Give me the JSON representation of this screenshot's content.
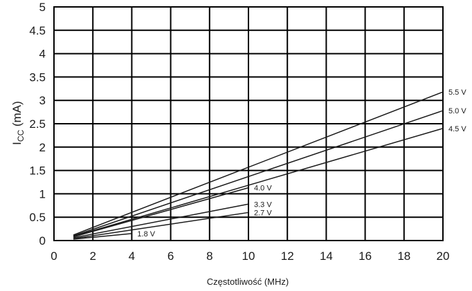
{
  "chart_data": {
    "type": "line",
    "title": "",
    "xlabel": "Częstotliwość (MHz)",
    "ylabel": {
      "main": "I",
      "subscript": "CC",
      "unit": " (mA)"
    },
    "xlim": [
      0,
      20
    ],
    "ylim": [
      0,
      5
    ],
    "xticks": [
      0,
      2,
      4,
      6,
      8,
      10,
      12,
      14,
      16,
      18,
      20
    ],
    "yticks": [
      0,
      0.5,
      1,
      1.5,
      2,
      2.5,
      3,
      3.5,
      4,
      4.5,
      5
    ],
    "ytick_labels": [
      "0",
      "0.5",
      "1",
      "1.5",
      "2",
      "2.5",
      "3",
      "3.5",
      "4",
      "4.5",
      "5"
    ],
    "grid": true,
    "series": [
      {
        "name": "5.5 V",
        "x": [
          1,
          20
        ],
        "y": [
          0.12,
          3.18
        ]
      },
      {
        "name": "5.0 V",
        "x": [
          1,
          20
        ],
        "y": [
          0.1,
          2.78
        ]
      },
      {
        "name": "4.5 V",
        "x": [
          1,
          20
        ],
        "y": [
          0.09,
          2.4
        ]
      },
      {
        "name": "4.0 V",
        "x": [
          1,
          10
        ],
        "y": [
          0.08,
          1.13
        ]
      },
      {
        "name": "3.3 V",
        "x": [
          1,
          10
        ],
        "y": [
          0.06,
          0.78
        ]
      },
      {
        "name": "2.7 V",
        "x": [
          1,
          10
        ],
        "y": [
          0.04,
          0.6
        ]
      },
      {
        "name": "1.8 V",
        "x": [
          1,
          4
        ],
        "y": [
          0.03,
          0.15
        ]
      }
    ]
  }
}
